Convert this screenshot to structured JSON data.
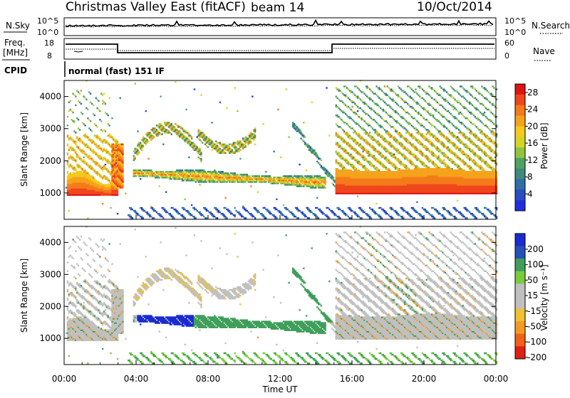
{
  "header": {
    "title": "Christmas Valley East (fitACF)",
    "beam": "beam 14",
    "date": "10/Oct/2014"
  },
  "colors": {
    "power_scale": [
      "#1f2fe0",
      "#2a4cc2",
      "#2e6ea6",
      "#3f8a79",
      "#4fa262",
      "#8fc53e",
      "#d4d426",
      "#f5c91c",
      "#f5a31b",
      "#f57a1a",
      "#f0461c",
      "#e01313"
    ],
    "velocity_scale": [
      "#1a2bd0",
      "#2550b8",
      "#3f9e5a",
      "#78cc3c",
      "#c0c0c0",
      "#c0c0c0",
      "#f0c030",
      "#f59a20",
      "#f06018",
      "#e02010"
    ]
  },
  "panels": {
    "sky": {
      "label": "N.Sky",
      "right_label": "N.Search",
      "left_ticks": [
        "10^5",
        "10^0"
      ],
      "right_ticks": [
        "10^5",
        "10^0"
      ]
    },
    "freq": {
      "label_line1": "Freq.",
      "label_line2": "[MHz]",
      "left_ticks": [
        "18",
        "8"
      ],
      "right_ticks": [
        "60",
        "0"
      ],
      "right_label": "Nave",
      "cpid_label": "CPID",
      "cpid_text": "normal (fast) 151 IF"
    }
  },
  "chart_data": [
    {
      "type": "heatmap",
      "name": "Power",
      "x_ticks": [
        "00:00",
        "04:00",
        "08:00",
        "12:00",
        "16:00",
        "20:00",
        "00:00"
      ],
      "xlim_hours": [
        0,
        24
      ],
      "ylabel": "Slant Range [km]",
      "y_ticks": [
        1000,
        2000,
        3000,
        4000
      ],
      "ylim_km": [
        180,
        4500
      ],
      "colorbar": {
        "label": "Power [dB]",
        "ticks": [
          4,
          8,
          12,
          16,
          20,
          24,
          28
        ],
        "range": [
          0,
          30
        ]
      }
    },
    {
      "type": "heatmap",
      "name": "Velocity",
      "x_ticks": [
        "00:00",
        "04:00",
        "08:00",
        "12:00",
        "16:00",
        "20:00",
        "00:00"
      ],
      "xlim_hours": [
        0,
        24
      ],
      "xlabel": "Time UT",
      "ylabel": "Slant Range [km]",
      "y_ticks": [
        1000,
        2000,
        3000,
        4000
      ],
      "ylim_km": [
        180,
        4500
      ],
      "colorbar": {
        "label": "Velocity [m s⁻¹]",
        "ticks": [
          200,
          100,
          50,
          15,
          -15,
          -50,
          -100,
          -200
        ]
      }
    }
  ]
}
